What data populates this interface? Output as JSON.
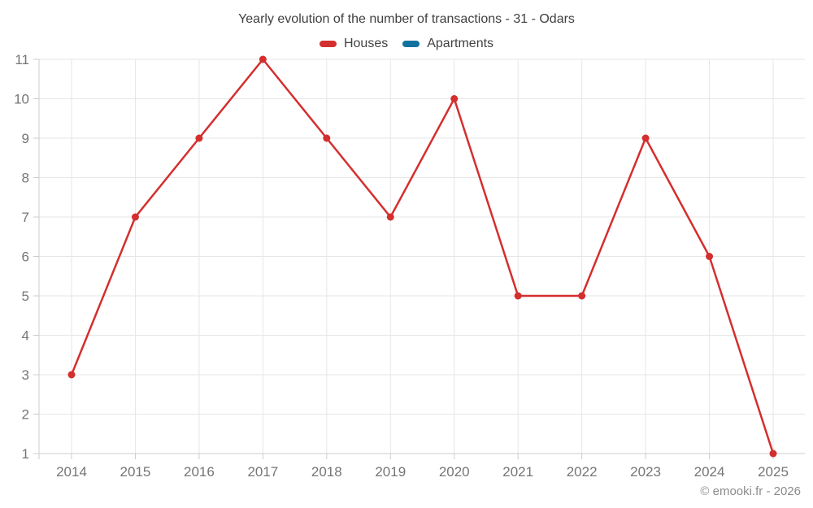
{
  "title": "Yearly evolution of the number of transactions - 31 - Odars",
  "watermark": "© emooki.fr - 2026",
  "colors": {
    "houses": "#d32f2e",
    "apartments": "#1171a0",
    "gridline": "#e6e6e6",
    "axis_line": "#cccccc",
    "tick_label": "#757575",
    "title_text": "#3f3f3f",
    "legend_text": "#424242",
    "watermark_text": "#8c8c8c",
    "background": "#ffffff"
  },
  "legend": {
    "items": [
      {
        "label": "Houses",
        "color": "#d32f2e"
      },
      {
        "label": "Apartments",
        "color": "#1171a0"
      }
    ]
  },
  "chart_data": {
    "type": "line",
    "title": "Yearly evolution of the number of transactions - 31 - Odars",
    "categories": [
      "2014",
      "2015",
      "2016",
      "2017",
      "2018",
      "2019",
      "2020",
      "2021",
      "2022",
      "2023",
      "2024",
      "2025"
    ],
    "series": [
      {
        "name": "Houses",
        "color": "#d32f2e",
        "values": [
          3,
          7,
          9,
          11,
          9,
          7,
          10,
          5,
          5,
          9,
          6,
          1
        ]
      },
      {
        "name": "Apartments",
        "color": "#1171a0",
        "values": []
      }
    ],
    "xlabel": "",
    "ylabel": "",
    "ylim": [
      1,
      11
    ],
    "yticks": [
      1,
      2,
      3,
      4,
      5,
      6,
      7,
      8,
      9,
      10,
      11
    ],
    "grid": true,
    "legend_position": "top"
  }
}
